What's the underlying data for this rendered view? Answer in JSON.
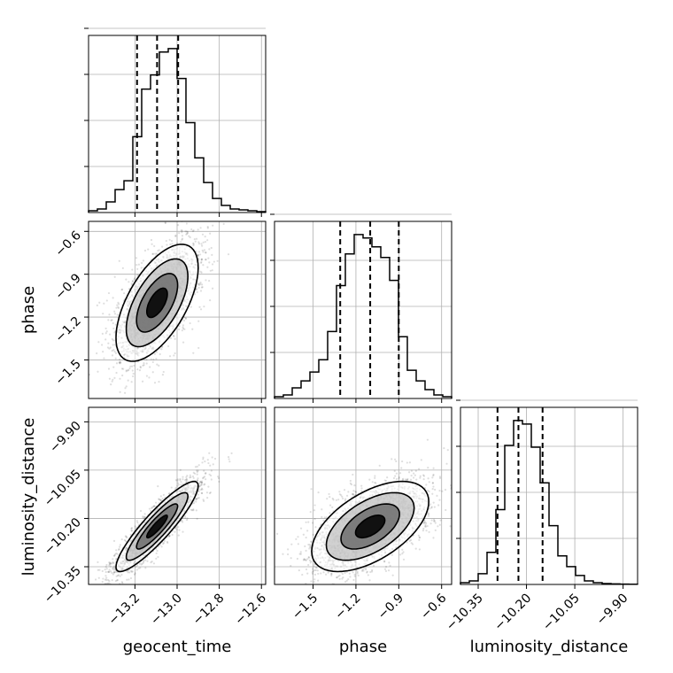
{
  "chart_data": {
    "type": "corner",
    "parameters": [
      "geocent_time",
      "phase",
      "luminosity_distance"
    ],
    "axis_ranges": {
      "geocent_time": [
        -13.42,
        -12.58
      ],
      "phase": [
        -1.77,
        -0.53
      ],
      "luminosity_distance": [
        -10.405,
        -9.855
      ]
    },
    "ticks": {
      "geocent_time": [
        -13.2,
        -13.0,
        -12.8,
        -12.6
      ],
      "phase": [
        -1.5,
        -1.2,
        -0.9,
        -0.6
      ],
      "luminosity_distance": [
        -10.35,
        -10.2,
        -10.05,
        -9.9
      ]
    },
    "tick_labels": {
      "geocent_time": [
        "−13.2",
        "−13.0",
        "−12.8",
        "−12.6"
      ],
      "phase": [
        "−1.5",
        "−1.2",
        "−0.9",
        "−0.6"
      ],
      "luminosity_distance": [
        "−10.35",
        "−10.20",
        "−10.05",
        "−9.90"
      ]
    },
    "quantiles": {
      "geocent_time": [
        -13.19,
        -13.095,
        -12.995
      ],
      "phase": [
        -1.31,
        -1.1,
        -0.9
      ],
      "luminosity_distance": [
        -10.29,
        -10.225,
        -10.15
      ]
    },
    "histograms": {
      "geocent_time": {
        "edges_start": -13.42,
        "edges_step": 0.042,
        "counts": [
          1,
          2,
          6,
          13,
          18,
          43,
          70,
          78,
          91,
          93,
          76,
          51,
          31,
          17,
          8,
          4,
          2,
          1.5,
          1,
          0.5
        ]
      },
      "phase": {
        "edges_start": -1.77,
        "edges_step": 0.062,
        "counts": [
          1,
          2,
          6,
          10,
          15,
          22,
          38,
          64,
          82,
          93,
          91,
          86,
          80,
          67,
          35,
          16,
          10,
          5,
          2,
          1
        ]
      },
      "luminosity_distance": {
        "edges_start": -10.405,
        "edges_step": 0.0275,
        "counts": [
          1,
          2,
          6,
          18,
          42,
          78,
          92,
          90,
          77,
          57,
          33,
          16,
          10,
          5,
          2,
          1,
          0.5,
          0.3,
          0.2,
          0.1
        ]
      }
    },
    "correlations": {
      "phase|geocent_time": 0.6,
      "luminosity_distance|geocent_time": 0.9,
      "luminosity_distance|phase": 0.55
    },
    "grid": true,
    "contour_levels_sigma": [
      0.5,
      1.0,
      1.5,
      2.0
    ]
  }
}
